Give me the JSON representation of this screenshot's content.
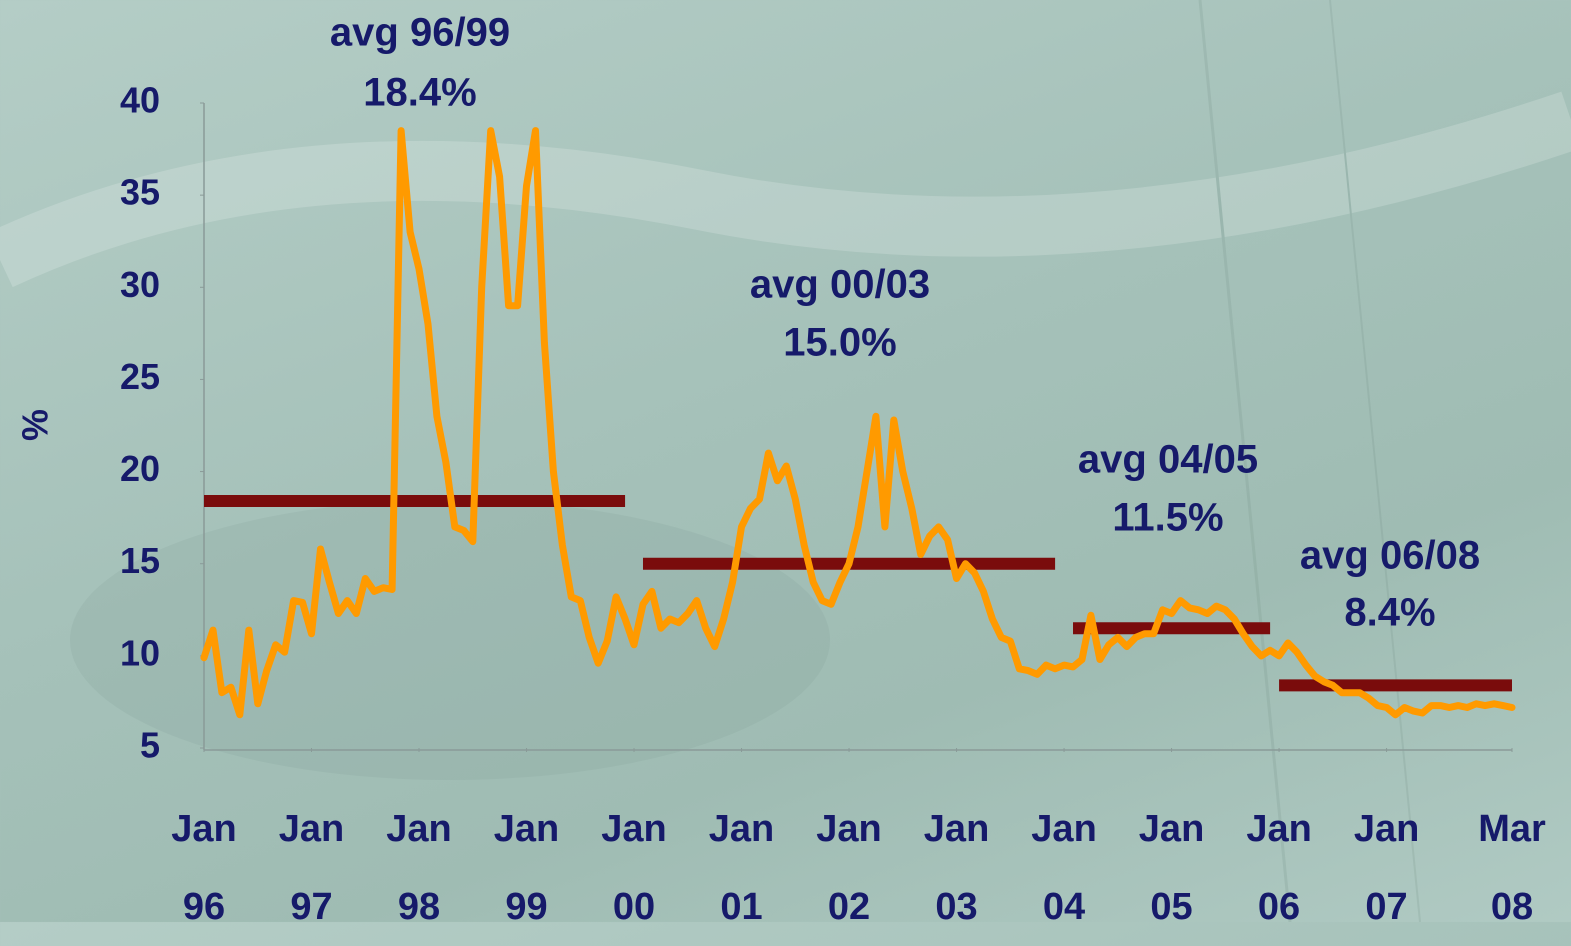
{
  "chart_data": {
    "type": "line",
    "y_label": "%",
    "xlim": [
      "1996-01",
      "2008-03"
    ],
    "ylim": [
      5,
      40
    ],
    "yticks": [
      5,
      10,
      15,
      20,
      25,
      30,
      35,
      40
    ],
    "xticks": [
      {
        "value": "1996-01",
        "label": "Jan 96"
      },
      {
        "value": "1997-01",
        "label": "Jan 97"
      },
      {
        "value": "1998-01",
        "label": "Jan 98"
      },
      {
        "value": "1999-01",
        "label": "Jan 99"
      },
      {
        "value": "2000-01",
        "label": "Jan 00"
      },
      {
        "value": "2001-01",
        "label": "Jan 01"
      },
      {
        "value": "2002-01",
        "label": "Jan 02"
      },
      {
        "value": "2003-01",
        "label": "Jan 03"
      },
      {
        "value": "2004-01",
        "label": "Jan 04"
      },
      {
        "value": "2005-01",
        "label": "Jan 05"
      },
      {
        "value": "2006-01",
        "label": "Jan 06"
      },
      {
        "value": "2007-01",
        "label": "Jan 07"
      },
      {
        "value": "2008-03",
        "label": "Mar 08"
      }
    ],
    "x": [
      "1996-01",
      "1996-02",
      "1996-03",
      "1996-04",
      "1996-05",
      "1996-06",
      "1996-07",
      "1996-08",
      "1996-09",
      "1996-10",
      "1996-11",
      "1996-12",
      "1997-01",
      "1997-02",
      "1997-03",
      "1997-04",
      "1997-05",
      "1997-06",
      "1997-07",
      "1997-08",
      "1997-09",
      "1997-10",
      "1997-11",
      "1997-12",
      "1998-01",
      "1998-02",
      "1998-03",
      "1998-04",
      "1998-05",
      "1998-06",
      "1998-07",
      "1998-08",
      "1998-09",
      "1998-10",
      "1998-11",
      "1998-12",
      "1999-01",
      "1999-02",
      "1999-03",
      "1999-04",
      "1999-05",
      "1999-06",
      "1999-07",
      "1999-08",
      "1999-09",
      "1999-10",
      "1999-11",
      "1999-12",
      "2000-01",
      "2000-02",
      "2000-03",
      "2000-04",
      "2000-05",
      "2000-06",
      "2000-07",
      "2000-08",
      "2000-09",
      "2000-10",
      "2000-11",
      "2000-12",
      "2001-01",
      "2001-02",
      "2001-03",
      "2001-04",
      "2001-05",
      "2001-06",
      "2001-07",
      "2001-08",
      "2001-09",
      "2001-10",
      "2001-11",
      "2001-12",
      "2002-01",
      "2002-02",
      "2002-03",
      "2002-04",
      "2002-05",
      "2002-06",
      "2002-07",
      "2002-08",
      "2002-09",
      "2002-10",
      "2002-11",
      "2002-12",
      "2003-01",
      "2003-02",
      "2003-03",
      "2003-04",
      "2003-05",
      "2003-06",
      "2003-07",
      "2003-08",
      "2003-09",
      "2003-10",
      "2003-11",
      "2003-12",
      "2004-01",
      "2004-02",
      "2004-03",
      "2004-04",
      "2004-05",
      "2004-06",
      "2004-07",
      "2004-08",
      "2004-09",
      "2004-10",
      "2004-11",
      "2004-12",
      "2005-01",
      "2005-02",
      "2005-03",
      "2005-04",
      "2005-05",
      "2005-06",
      "2005-07",
      "2005-08",
      "2005-09",
      "2005-10",
      "2005-11",
      "2005-12",
      "2006-01",
      "2006-02",
      "2006-03",
      "2006-04",
      "2006-05",
      "2006-06",
      "2006-07",
      "2006-08",
      "2006-09",
      "2006-10",
      "2006-11",
      "2006-12",
      "2007-01",
      "2007-02",
      "2007-03",
      "2007-04",
      "2007-05",
      "2007-06",
      "2007-07",
      "2007-08",
      "2007-09",
      "2007-10",
      "2007-11",
      "2007-12",
      "2008-01",
      "2008-02",
      "2008-03"
    ],
    "series": [
      {
        "color": "#ff9a00",
        "values": [
          9.9,
          11.4,
          8.0,
          8.3,
          6.8,
          11.4,
          7.4,
          9.2,
          10.6,
          10.2,
          13.0,
          12.9,
          11.2,
          15.8,
          14.0,
          12.3,
          13.0,
          12.3,
          14.2,
          13.5,
          13.7,
          13.6,
          38.5,
          33.0,
          31.0,
          28.0,
          23.0,
          20.5,
          17.0,
          16.8,
          16.2,
          30.0,
          38.5,
          36.0,
          29.0,
          29.0,
          35.5,
          38.5,
          27.0,
          20.0,
          16.0,
          13.2,
          13.0,
          11.0,
          9.6,
          10.8,
          13.2,
          12.0,
          10.6,
          12.8,
          13.5,
          11.5,
          12.0,
          11.8,
          12.3,
          13.0,
          11.5,
          10.5,
          12.0,
          14.0,
          17.0,
          18.0,
          18.5,
          21.0,
          19.5,
          20.3,
          18.5,
          16.0,
          14.0,
          13.0,
          12.8,
          14.0,
          15.0,
          17.0,
          20.0,
          23.0,
          17.0,
          22.8,
          20.0,
          18.0,
          15.5,
          16.5,
          17.0,
          16.3,
          14.2,
          15.0,
          14.5,
          13.5,
          12.0,
          11.0,
          10.8,
          9.3,
          9.2,
          9.0,
          9.5,
          9.3,
          9.5,
          9.4,
          9.8,
          12.2,
          9.8,
          10.6,
          11.0,
          10.5,
          11.0,
          11.2,
          11.2,
          12.5,
          12.3,
          13.0,
          12.6,
          12.5,
          12.3,
          12.7,
          12.5,
          12.0,
          11.2,
          10.5,
          10.0,
          10.3,
          10.0,
          10.7,
          10.2,
          9.5,
          8.9,
          8.6,
          8.4,
          8.0,
          8.0,
          8.0,
          7.7,
          7.3,
          7.2,
          6.8,
          7.2,
          7.0,
          6.9,
          7.3,
          7.3,
          7.2,
          7.3,
          7.2,
          7.4,
          7.3,
          7.4,
          7.3,
          7.2
        ]
      }
    ],
    "averages": [
      {
        "label": "avg 96/99",
        "value_label": "18.4%",
        "value": 18.4,
        "start": "1996-01",
        "end": "1999-12",
        "color": "#7a0c0c"
      },
      {
        "label": "avg 00/03",
        "value_label": "15.0%",
        "value": 15.0,
        "start": "2000-02",
        "end": "2003-12",
        "color": "#7a0c0c"
      },
      {
        "label": "avg 04/05",
        "value_label": "11.5%",
        "value": 11.5,
        "start": "2004-02",
        "end": "2005-12",
        "color": "#7a0c0c"
      },
      {
        "label": "avg 06/08",
        "value_label": "8.4%",
        "value": 8.4,
        "start": "2006-01",
        "end": "2008-03",
        "color": "#7a0c0c"
      }
    ]
  }
}
